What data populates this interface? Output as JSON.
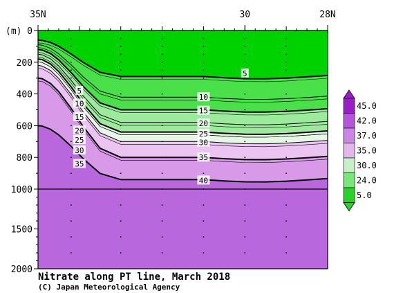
{
  "chart_data": {
    "type": "heatmap",
    "title": "Nitrate along PT line, March 2018",
    "credit": "(C) Japan Meteorological Agency",
    "ylabel": "(m)",
    "x_tick_labels": [
      "35N",
      "30",
      "28N"
    ],
    "x_ticks": [
      35,
      30,
      28
    ],
    "xlim": [
      35,
      28
    ],
    "y_tick_labels": [
      "0",
      "200",
      "400",
      "600",
      "800",
      "1000",
      "1500",
      "2000"
    ],
    "y_ticks": [
      0,
      200,
      400,
      600,
      800,
      1000,
      1500,
      2000
    ],
    "ylim": [
      2000,
      0
    ],
    "contour_levels": [
      5,
      10,
      15,
      20,
      25,
      30,
      35,
      40
    ],
    "contour_labels": [
      {
        "value": 5,
        "latitude": 30.0,
        "depth": 270
      },
      {
        "value": 5,
        "latitude": 34.0,
        "depth": 380
      },
      {
        "value": 10,
        "latitude": 34.0,
        "depth": 460
      },
      {
        "value": 15,
        "latitude": 34.0,
        "depth": 545
      },
      {
        "value": 20,
        "latitude": 34.0,
        "depth": 630
      },
      {
        "value": 25,
        "latitude": 34.0,
        "depth": 690
      },
      {
        "value": 30,
        "latitude": 34.0,
        "depth": 755
      },
      {
        "value": 35,
        "latitude": 34.0,
        "depth": 840
      },
      {
        "value": 10,
        "latitude": 31.0,
        "depth": 420
      },
      {
        "value": 15,
        "latitude": 31.0,
        "depth": 505
      },
      {
        "value": 20,
        "latitude": 31.0,
        "depth": 585
      },
      {
        "value": 25,
        "latitude": 31.0,
        "depth": 650
      },
      {
        "value": 30,
        "latitude": 31.0,
        "depth": 705
      },
      {
        "value": 35,
        "latitude": 31.0,
        "depth": 800
      },
      {
        "value": 40,
        "latitude": 31.0,
        "depth": 945
      }
    ],
    "colorbar": {
      "labels": [
        "45.0",
        "42.0",
        "37.0",
        "35.0",
        "30.0",
        "24.0",
        "5.0"
      ],
      "colors": [
        "#9a1ec8",
        "#b455dc",
        "#cc85e6",
        "#e4b6ee",
        "#c8f0c8",
        "#78e678",
        "#28d228"
      ]
    },
    "palette": {
      "very_low": "#00d200",
      "low": "#4ae04a",
      "mid_low": "#9ceb9c",
      "transition": "#e6f7e6",
      "mid_high": "#ecc4f2",
      "high": "#d89ae8",
      "very_high": "#b868dc"
    }
  }
}
